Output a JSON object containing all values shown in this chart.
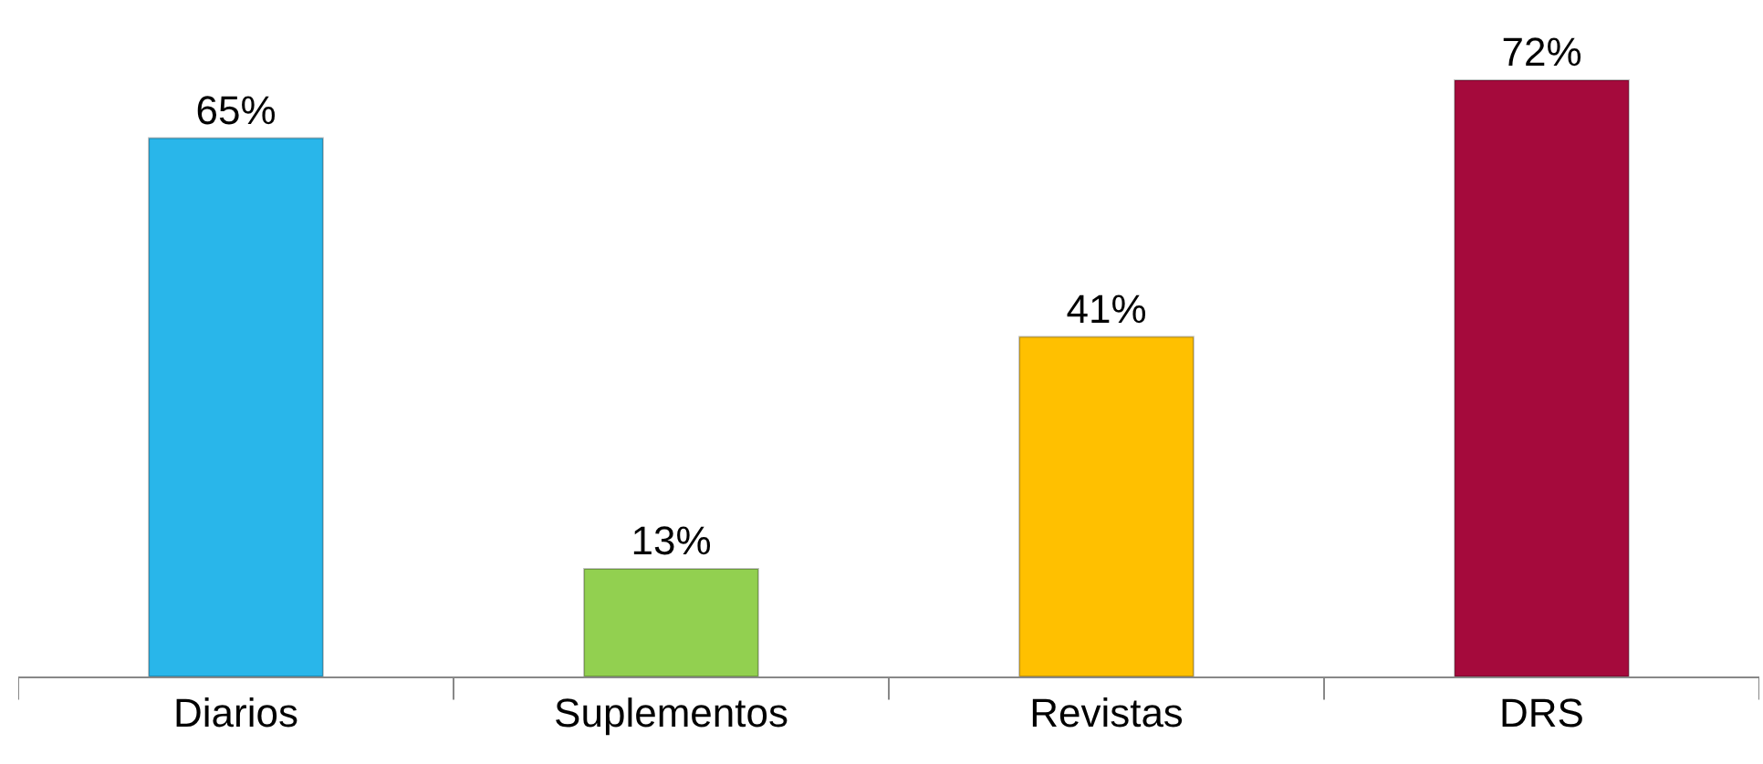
{
  "chart_data": {
    "type": "bar",
    "categories": [
      "Diarios",
      "Suplementos",
      "Revistas",
      "DRS"
    ],
    "values": [
      65,
      13,
      41,
      72
    ],
    "colors": [
      "#29b6ea",
      "#92d050",
      "#ffc000",
      "#a50a3c"
    ],
    "value_labels": [
      "65%",
      "13%",
      "41%",
      "72%"
    ],
    "grid": false,
    "legend": false
  }
}
